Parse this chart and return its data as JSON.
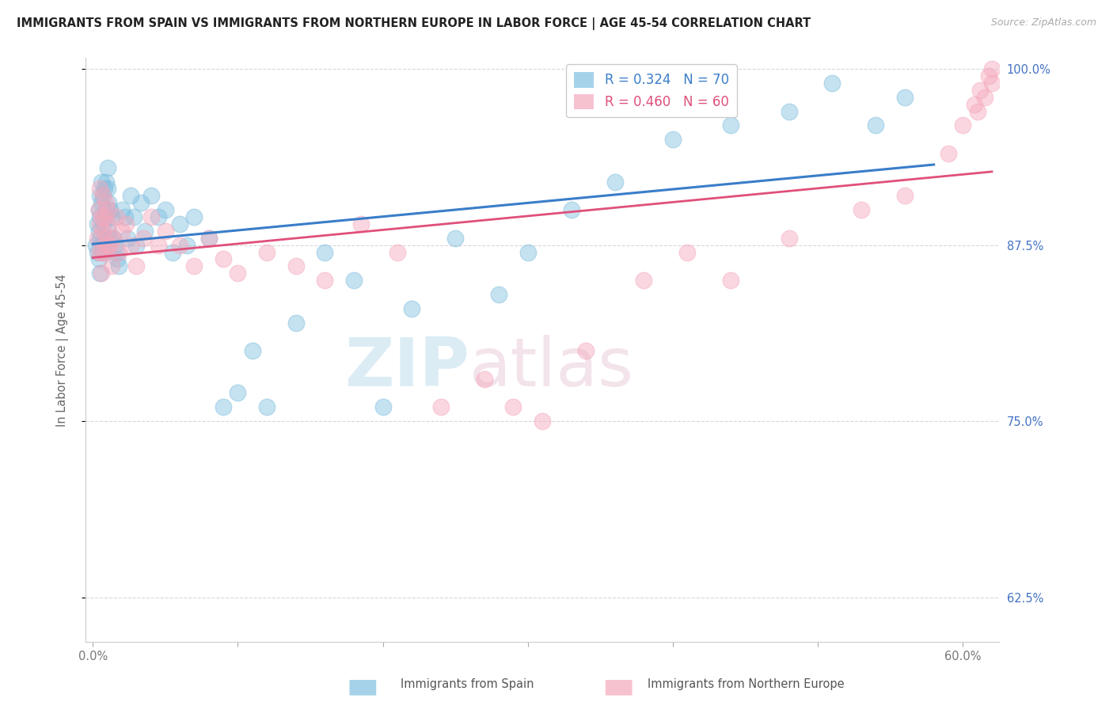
{
  "title": "IMMIGRANTS FROM SPAIN VS IMMIGRANTS FROM NORTHERN EUROPE IN LABOR FORCE | AGE 45-54 CORRELATION CHART",
  "source": "Source: ZipAtlas.com",
  "ylabel": "In Labor Force | Age 45-54",
  "xlim_min": -0.005,
  "xlim_max": 0.625,
  "ylim_min": 0.593,
  "ylim_max": 1.008,
  "blue_R": 0.324,
  "blue_N": 70,
  "pink_R": 0.46,
  "pink_N": 60,
  "blue_color": "#7fbfdf",
  "pink_color": "#f5a8bc",
  "blue_line_color": "#3a7dc9",
  "pink_line_color": "#e0507a",
  "background_color": "#ffffff",
  "grid_color": "#d8d8d8",
  "watermark_color": "#cce4f0",
  "blue_x": [
    0.002,
    0.003,
    0.003,
    0.004,
    0.004,
    0.004,
    0.005,
    0.005,
    0.005,
    0.005,
    0.006,
    0.006,
    0.006,
    0.007,
    0.007,
    0.007,
    0.008,
    0.008,
    0.008,
    0.009,
    0.009,
    0.01,
    0.01,
    0.01,
    0.011,
    0.011,
    0.012,
    0.012,
    0.013,
    0.014,
    0.015,
    0.016,
    0.017,
    0.018,
    0.02,
    0.022,
    0.024,
    0.026,
    0.028,
    0.03,
    0.033,
    0.036,
    0.04,
    0.045,
    0.05,
    0.055,
    0.06,
    0.065,
    0.07,
    0.08,
    0.09,
    0.1,
    0.11,
    0.12,
    0.14,
    0.16,
    0.18,
    0.2,
    0.22,
    0.25,
    0.28,
    0.3,
    0.33,
    0.36,
    0.4,
    0.44,
    0.48,
    0.51,
    0.54,
    0.56
  ],
  "blue_y": [
    0.875,
    0.89,
    0.87,
    0.9,
    0.885,
    0.865,
    0.91,
    0.895,
    0.88,
    0.855,
    0.92,
    0.905,
    0.875,
    0.91,
    0.89,
    0.87,
    0.915,
    0.895,
    0.88,
    0.92,
    0.9,
    0.93,
    0.915,
    0.895,
    0.905,
    0.885,
    0.9,
    0.88,
    0.895,
    0.88,
    0.875,
    0.87,
    0.865,
    0.86,
    0.9,
    0.895,
    0.88,
    0.91,
    0.895,
    0.875,
    0.905,
    0.885,
    0.91,
    0.895,
    0.9,
    0.87,
    0.89,
    0.875,
    0.895,
    0.88,
    0.76,
    0.77,
    0.8,
    0.76,
    0.82,
    0.87,
    0.85,
    0.76,
    0.83,
    0.88,
    0.84,
    0.87,
    0.9,
    0.92,
    0.95,
    0.96,
    0.97,
    0.99,
    0.96,
    0.98
  ],
  "pink_x": [
    0.003,
    0.004,
    0.004,
    0.005,
    0.005,
    0.006,
    0.006,
    0.006,
    0.007,
    0.007,
    0.008,
    0.008,
    0.009,
    0.009,
    0.01,
    0.01,
    0.011,
    0.012,
    0.013,
    0.014,
    0.016,
    0.018,
    0.02,
    0.023,
    0.026,
    0.03,
    0.035,
    0.04,
    0.045,
    0.05,
    0.06,
    0.07,
    0.08,
    0.09,
    0.1,
    0.12,
    0.14,
    0.16,
    0.185,
    0.21,
    0.24,
    0.27,
    0.29,
    0.31,
    0.34,
    0.38,
    0.41,
    0.44,
    0.48,
    0.53,
    0.56,
    0.59,
    0.6,
    0.61,
    0.615,
    0.62,
    0.62,
    0.618,
    0.612,
    0.608
  ],
  "pink_y": [
    0.88,
    0.9,
    0.87,
    0.915,
    0.89,
    0.895,
    0.87,
    0.855,
    0.91,
    0.885,
    0.895,
    0.87,
    0.905,
    0.88,
    0.9,
    0.875,
    0.89,
    0.875,
    0.86,
    0.88,
    0.895,
    0.87,
    0.885,
    0.89,
    0.875,
    0.86,
    0.88,
    0.895,
    0.875,
    0.885,
    0.875,
    0.86,
    0.88,
    0.865,
    0.855,
    0.87,
    0.86,
    0.85,
    0.89,
    0.87,
    0.76,
    0.78,
    0.76,
    0.75,
    0.8,
    0.85,
    0.87,
    0.85,
    0.88,
    0.9,
    0.91,
    0.94,
    0.96,
    0.97,
    0.98,
    0.99,
    1.0,
    0.995,
    0.985,
    0.975
  ]
}
